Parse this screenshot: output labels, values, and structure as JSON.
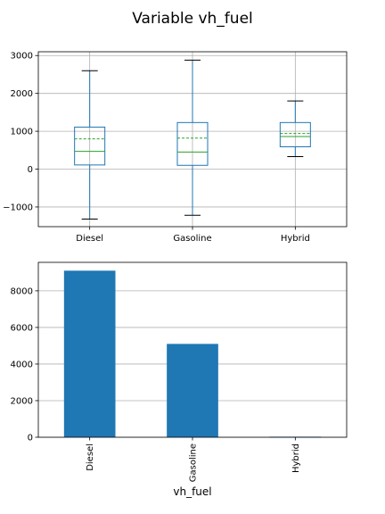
{
  "figure": {
    "title": "Variable vh_fuel"
  },
  "chart_data": [
    {
      "type": "box",
      "categories": [
        "Diesel",
        "Gasoline",
        "Hybrid"
      ],
      "boxes": [
        {
          "category": "Diesel",
          "whisker_low": -1320,
          "q1": 110,
          "median": 470,
          "mean": 800,
          "q3": 1110,
          "whisker_high": 2600
        },
        {
          "category": "Gasoline",
          "whisker_low": -1220,
          "q1": 100,
          "median": 450,
          "mean": 820,
          "q3": 1230,
          "whisker_high": 2880
        },
        {
          "category": "Hybrid",
          "whisker_low": 330,
          "q1": 590,
          "median": 860,
          "mean": 940,
          "q3": 1230,
          "whisker_high": 1800
        }
      ],
      "yticks": [
        -1000,
        0,
        1000,
        2000,
        3000
      ],
      "ytick_labels": [
        "−1000",
        "0",
        "1000",
        "2000",
        "3000"
      ],
      "ylim": [
        -1520,
        3100
      ],
      "grid": true,
      "colors": {
        "box": "#1f77b4",
        "median": "#2ca02c",
        "mean": "#2ca02c",
        "whisker_cap": "#000000",
        "grid": "#b0b0b0"
      }
    },
    {
      "type": "bar",
      "categories": [
        "Diesel",
        "Gasoline",
        "Hybrid"
      ],
      "values": [
        9100,
        5100,
        30
      ],
      "xlabel": "vh_fuel",
      "yticks": [
        0,
        2000,
        4000,
        6000,
        8000
      ],
      "ytick_labels": [
        "0",
        "2000",
        "4000",
        "6000",
        "8000"
      ],
      "ylim": [
        0,
        9555
      ],
      "grid": true,
      "colors": {
        "bar": "#1f77b4",
        "grid": "#b0b0b0"
      }
    }
  ]
}
